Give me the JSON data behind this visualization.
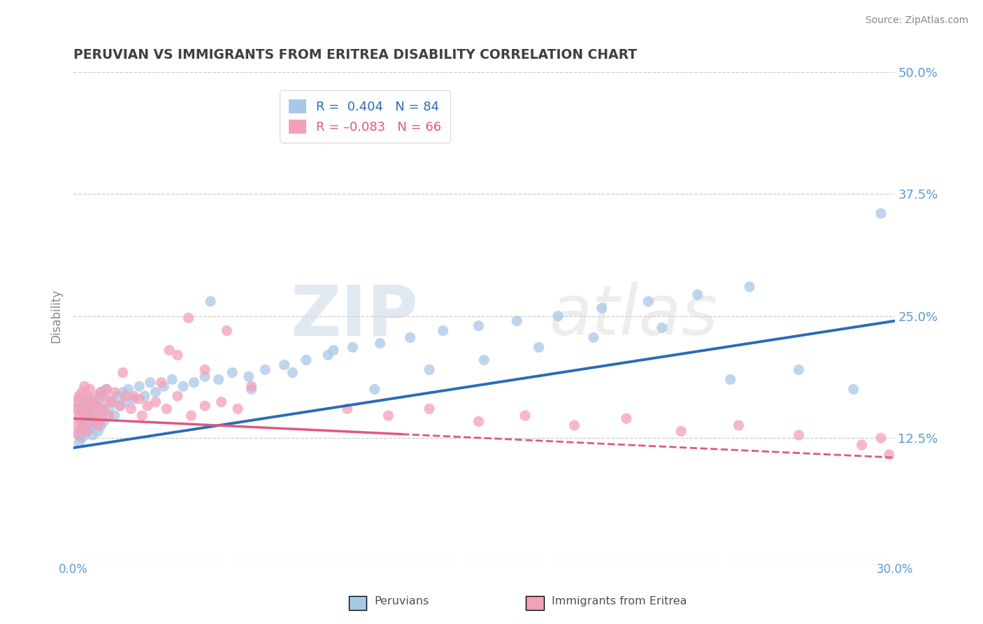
{
  "title": "PERUVIAN VS IMMIGRANTS FROM ERITREA DISABILITY CORRELATION CHART",
  "source": "Source: ZipAtlas.com",
  "ylabel": "Disability",
  "x_min": 0.0,
  "x_max": 0.3,
  "y_min": 0.0,
  "y_max": 0.5,
  "x_ticks": [
    0.0,
    0.05,
    0.1,
    0.15,
    0.2,
    0.25,
    0.3
  ],
  "x_tick_labels": [
    "0.0%",
    "",
    "",
    "",
    "",
    "",
    "30.0%"
  ],
  "y_ticks": [
    0.0,
    0.125,
    0.25,
    0.375,
    0.5
  ],
  "y_tick_labels": [
    "",
    "12.5%",
    "25.0%",
    "37.5%",
    "50.0%"
  ],
  "blue_R": 0.404,
  "blue_N": 84,
  "pink_R": -0.083,
  "pink_N": 66,
  "blue_color": "#a8c8e8",
  "pink_color": "#f4a0b8",
  "blue_line_color": "#2b6cb8",
  "pink_line_color": "#e05880",
  "legend_label_blue": "Peruvians",
  "legend_label_pink": "Immigrants from Eritrea",
  "watermark_zip": "ZIP",
  "watermark_atlas": "atlas",
  "background_color": "#ffffff",
  "grid_color": "#cccccc",
  "title_color": "#404040",
  "axis_label_color": "#5b9bd5",
  "blue_line_start_y": 0.115,
  "blue_line_end_y": 0.245,
  "pink_line_start_y": 0.145,
  "pink_line_end_y": 0.105,
  "blue_scatter_x": [
    0.001,
    0.001,
    0.002,
    0.002,
    0.002,
    0.003,
    0.003,
    0.003,
    0.003,
    0.004,
    0.004,
    0.004,
    0.004,
    0.005,
    0.005,
    0.005,
    0.005,
    0.006,
    0.006,
    0.006,
    0.007,
    0.007,
    0.007,
    0.008,
    0.008,
    0.009,
    0.009,
    0.01,
    0.01,
    0.01,
    0.011,
    0.011,
    0.012,
    0.012,
    0.013,
    0.014,
    0.015,
    0.016,
    0.017,
    0.018,
    0.019,
    0.02,
    0.022,
    0.024,
    0.026,
    0.028,
    0.03,
    0.033,
    0.036,
    0.04,
    0.044,
    0.048,
    0.053,
    0.058,
    0.064,
    0.07,
    0.077,
    0.085,
    0.093,
    0.102,
    0.112,
    0.123,
    0.135,
    0.148,
    0.162,
    0.177,
    0.193,
    0.21,
    0.228,
    0.247,
    0.05,
    0.065,
    0.08,
    0.095,
    0.11,
    0.13,
    0.15,
    0.17,
    0.19,
    0.215,
    0.24,
    0.265,
    0.285,
    0.295
  ],
  "blue_scatter_y": [
    0.13,
    0.155,
    0.12,
    0.145,
    0.165,
    0.125,
    0.14,
    0.158,
    0.135,
    0.128,
    0.148,
    0.162,
    0.138,
    0.132,
    0.152,
    0.168,
    0.142,
    0.136,
    0.155,
    0.145,
    0.128,
    0.162,
    0.138,
    0.148,
    0.158,
    0.132,
    0.165,
    0.138,
    0.155,
    0.172,
    0.142,
    0.168,
    0.148,
    0.175,
    0.155,
    0.162,
    0.148,
    0.168,
    0.158,
    0.172,
    0.162,
    0.175,
    0.165,
    0.178,
    0.168,
    0.182,
    0.172,
    0.178,
    0.185,
    0.178,
    0.182,
    0.188,
    0.185,
    0.192,
    0.188,
    0.195,
    0.2,
    0.205,
    0.21,
    0.218,
    0.222,
    0.228,
    0.235,
    0.24,
    0.245,
    0.25,
    0.258,
    0.265,
    0.272,
    0.28,
    0.265,
    0.175,
    0.192,
    0.215,
    0.175,
    0.195,
    0.205,
    0.218,
    0.228,
    0.238,
    0.185,
    0.195,
    0.175,
    0.355
  ],
  "pink_scatter_x": [
    0.001,
    0.001,
    0.001,
    0.002,
    0.002,
    0.002,
    0.003,
    0.003,
    0.003,
    0.004,
    0.004,
    0.004,
    0.005,
    0.005,
    0.005,
    0.006,
    0.006,
    0.007,
    0.007,
    0.008,
    0.008,
    0.009,
    0.009,
    0.01,
    0.01,
    0.011,
    0.012,
    0.013,
    0.014,
    0.015,
    0.017,
    0.019,
    0.021,
    0.024,
    0.027,
    0.03,
    0.034,
    0.038,
    0.043,
    0.048,
    0.054,
    0.06,
    0.038,
    0.042,
    0.048,
    0.056,
    0.065,
    0.1,
    0.115,
    0.13,
    0.148,
    0.165,
    0.183,
    0.202,
    0.222,
    0.243,
    0.265,
    0.288,
    0.295,
    0.298,
    0.012,
    0.018,
    0.025,
    0.035,
    0.022,
    0.032
  ],
  "pink_scatter_y": [
    0.138,
    0.155,
    0.162,
    0.128,
    0.148,
    0.168,
    0.135,
    0.152,
    0.172,
    0.142,
    0.158,
    0.178,
    0.148,
    0.165,
    0.132,
    0.155,
    0.175,
    0.142,
    0.162,
    0.148,
    0.168,
    0.138,
    0.158,
    0.145,
    0.172,
    0.155,
    0.165,
    0.148,
    0.162,
    0.172,
    0.158,
    0.168,
    0.155,
    0.165,
    0.158,
    0.162,
    0.155,
    0.168,
    0.148,
    0.158,
    0.162,
    0.155,
    0.21,
    0.248,
    0.195,
    0.235,
    0.178,
    0.155,
    0.148,
    0.155,
    0.142,
    0.148,
    0.138,
    0.145,
    0.132,
    0.138,
    0.128,
    0.118,
    0.125,
    0.108,
    0.175,
    0.192,
    0.148,
    0.215,
    0.168,
    0.182
  ]
}
